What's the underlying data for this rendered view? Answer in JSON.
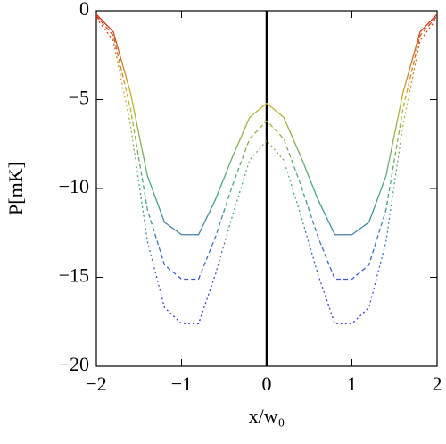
{
  "chart_data": {
    "type": "line",
    "xlabel": "x/w₀",
    "ylabel": "P[mK]",
    "x": [
      -2,
      -1.8,
      -1.6,
      -1.4,
      -1.2,
      -1.0,
      -0.8,
      -0.6,
      -0.4,
      -0.2,
      0,
      0.2,
      0.4,
      0.6,
      0.8,
      1.0,
      1.2,
      1.4,
      1.6,
      1.8,
      2
    ],
    "series": [
      {
        "line_style": "solid",
        "values": [
          -0.2,
          -1.2,
          -4.6,
          -9.3,
          -11.9,
          -12.6,
          -12.6,
          -10.6,
          -8.2,
          -6.0,
          -5.2,
          -6.0,
          -8.2,
          -10.6,
          -12.6,
          -12.6,
          -11.9,
          -9.3,
          -4.6,
          -1.2,
          -0.2
        ]
      },
      {
        "line_style": "dashed",
        "values": [
          -0.3,
          -1.4,
          -5.5,
          -11.2,
          -14.3,
          -15.1,
          -15.1,
          -12.7,
          -9.8,
          -7.2,
          -6.2,
          -7.2,
          -9.8,
          -12.7,
          -15.1,
          -15.1,
          -14.3,
          -11.2,
          -5.5,
          -1.4,
          -0.3
        ]
      },
      {
        "line_style": "dotted",
        "values": [
          -0.4,
          -1.7,
          -6.4,
          -13.0,
          -16.7,
          -17.6,
          -17.6,
          -14.8,
          -11.5,
          -8.4,
          -7.3,
          -8.4,
          -11.5,
          -14.8,
          -17.6,
          -17.6,
          -16.7,
          -13.0,
          -6.4,
          -1.7,
          -0.4
        ]
      }
    ],
    "color_gradient": [
      "#d02818",
      "#c8b428",
      "#48a888",
      "#4058c8",
      "#3020b0"
    ],
    "vline": 0,
    "xlim": [
      -2,
      2
    ],
    "ylim": [
      -20,
      0
    ],
    "xticks": [
      {
        "value": -2,
        "label": "−2"
      },
      {
        "value": -1,
        "label": "−1"
      },
      0,
      1,
      2
    ],
    "yticks": [
      {
        "value": -20,
        "label": "−20"
      },
      {
        "value": -15,
        "label": "−15"
      },
      {
        "value": -10,
        "label": "−10"
      },
      {
        "value": -5,
        "label": "−5"
      },
      0
    ]
  }
}
